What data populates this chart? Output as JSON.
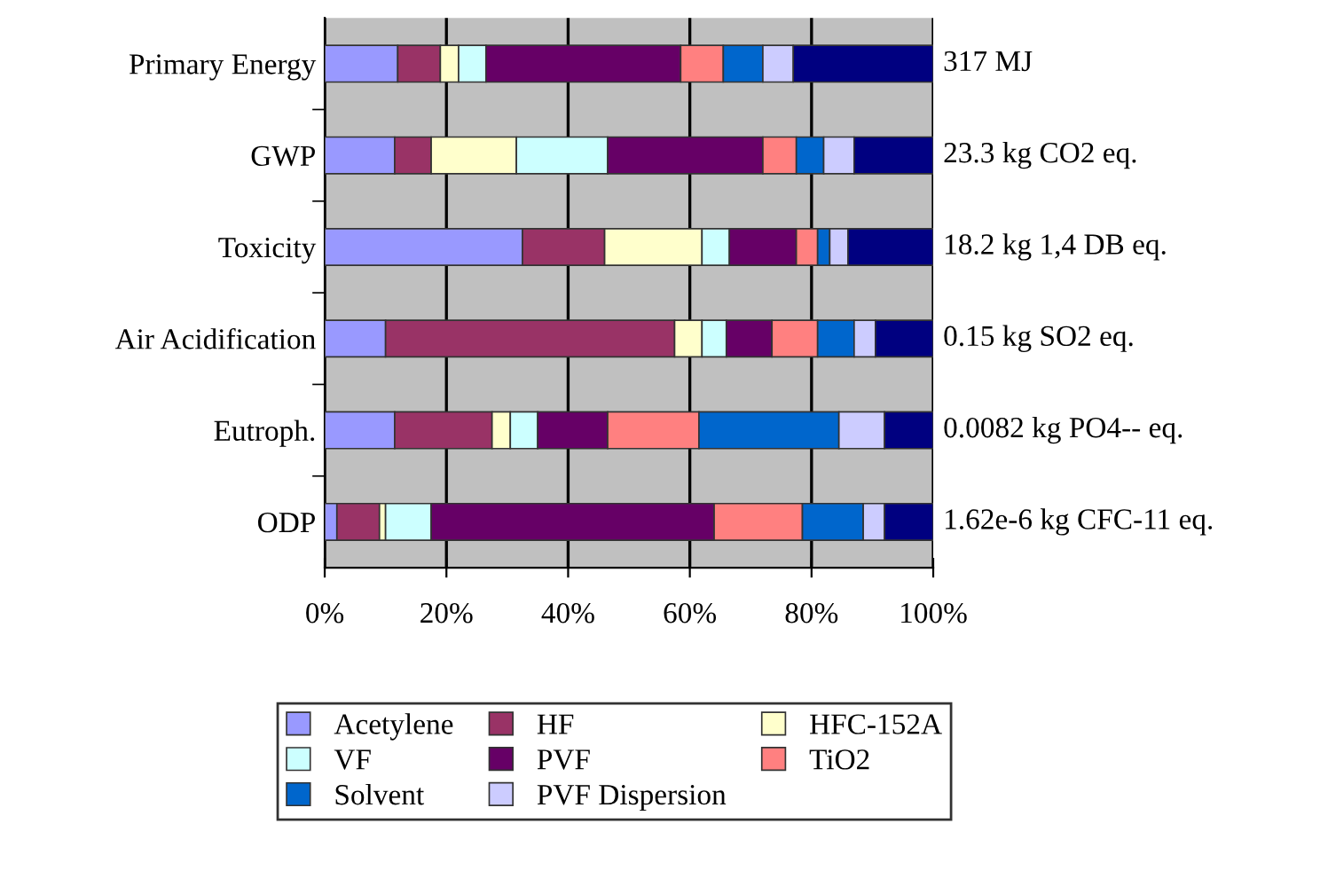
{
  "chart_data": {
    "type": "bar",
    "orientation": "horizontal",
    "stacked": true,
    "categories": [
      "Primary Energy",
      "GWP",
      "Toxicity",
      "Air Acidification",
      "Eutroph.",
      "ODP"
    ],
    "series": [
      {
        "name": "Acetylene",
        "color": "#9999ff",
        "values": [
          12,
          11.5,
          32.5,
          10,
          11.5,
          2
        ]
      },
      {
        "name": "HF",
        "color": "#993366",
        "values": [
          7,
          6,
          13.5,
          47.5,
          16,
          7
        ]
      },
      {
        "name": "HFC-152A",
        "color": "#ffffcc",
        "values": [
          3,
          14,
          16,
          4.5,
          3,
          1
        ]
      },
      {
        "name": "VF",
        "color": "#ccffff",
        "values": [
          4.5,
          15,
          4.5,
          4,
          4.5,
          7.5
        ]
      },
      {
        "name": "PVF",
        "color": "#660066",
        "values": [
          32,
          25.5,
          11,
          7.5,
          11.5,
          46.5
        ]
      },
      {
        "name": "TiO2",
        "color": "#ff8080",
        "values": [
          7,
          5.5,
          3.5,
          7.5,
          15,
          14.5
        ]
      },
      {
        "name": "Solvent",
        "color": "#0066cc",
        "values": [
          6.5,
          4.5,
          2,
          6,
          23,
          10
        ]
      },
      {
        "name": "PVF Dispersion",
        "color": "#ccccff",
        "values": [
          5,
          5,
          3,
          3.5,
          7.5,
          3.5
        ]
      },
      {
        "color": "#000080",
        "values": [
          23,
          13,
          14,
          9.5,
          8,
          8
        ]
      }
    ],
    "xlim": [
      0,
      100
    ],
    "xticks": [
      {
        "value": 0,
        "label": "0%"
      },
      {
        "value": 20,
        "label": "20%"
      },
      {
        "value": 40,
        "label": "40%"
      },
      {
        "value": 60,
        "label": "60%"
      },
      {
        "value": 80,
        "label": "80%"
      },
      {
        "value": 100,
        "label": "100%"
      }
    ],
    "grid": "x",
    "legend": "bottom",
    "annotations": [
      "317 MJ",
      "23.3 kg CO2 eq.",
      "18.2 kg 1,4 DB eq.",
      "0.15 kg SO2 eq.",
      "0.0082 kg PO4-- eq.",
      "1.62e-6 kg CFC-11 eq."
    ]
  }
}
